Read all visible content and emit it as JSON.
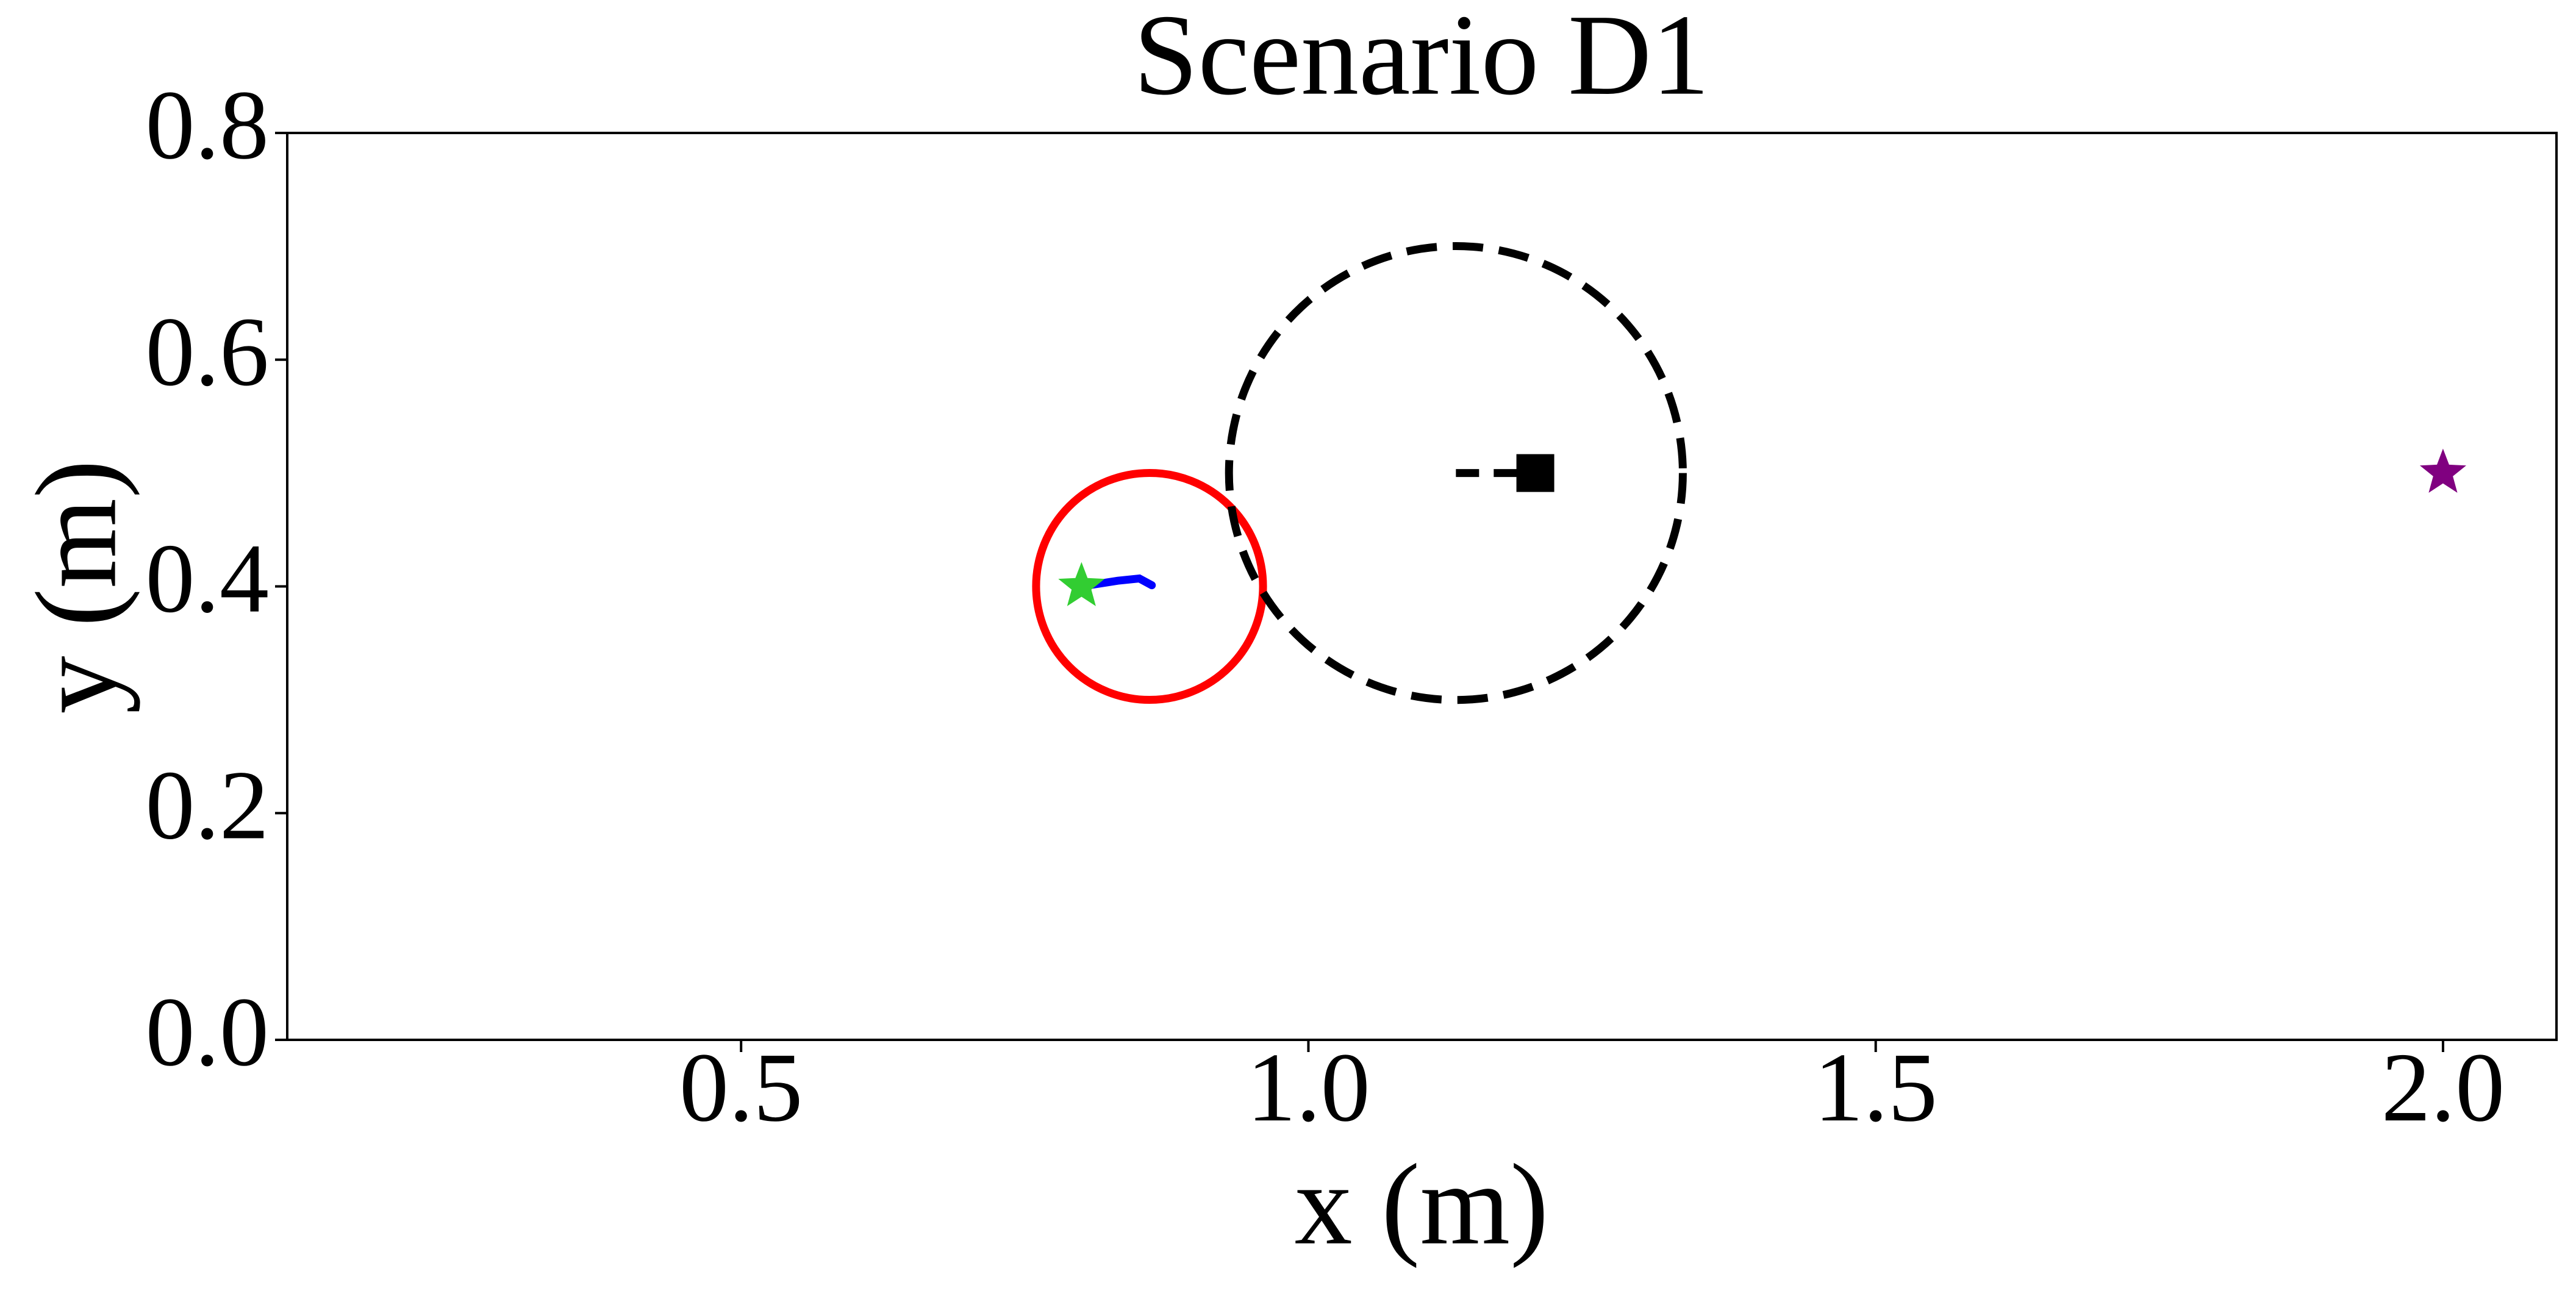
{
  "chart_data": {
    "type": "trajectory",
    "title": "Scenario D1",
    "x_label": "x (m)",
    "y_label": "y (m)",
    "xlim": [
      0.1,
      2.1
    ],
    "ylim": [
      0,
      0.8
    ],
    "xticks": [
      0.5,
      {
        "value": 1,
        "label": "1.0"
      },
      1.5,
      {
        "value": 2,
        "label": "2.0"
      }
    ],
    "yticks": [
      {
        "value": 0,
        "label": "0.0"
      },
      0.2,
      0.4,
      0.6,
      0.8
    ],
    "circles": [
      {
        "x": 0.86,
        "y": 0.4,
        "r": 0.1,
        "color": "#ff0000",
        "dashed": false
      },
      {
        "x": 1.13,
        "y": 0.5,
        "r": 0.2,
        "color": "#000000",
        "dashed": true
      }
    ],
    "lines": [
      {
        "x": [
          0.8,
          0.832,
          0.851,
          0.862
        ],
        "y": [
          0.4,
          0.405,
          0.407,
          0.401
        ],
        "color": "#0000ff",
        "dashed": false
      },
      {
        "x": [
          1.13,
          1.2
        ],
        "y": [
          0.5,
          0.5
        ],
        "color": "#000000",
        "dashed": true
      }
    ],
    "stars": [
      {
        "x": 0.8,
        "y": 0.4,
        "color": "#32cd32"
      },
      {
        "x": 2.0,
        "y": 0.5,
        "color": "#800080"
      }
    ],
    "squares": [
      {
        "x": 1.2,
        "y": 0.5,
        "color": "#000000"
      }
    ]
  }
}
